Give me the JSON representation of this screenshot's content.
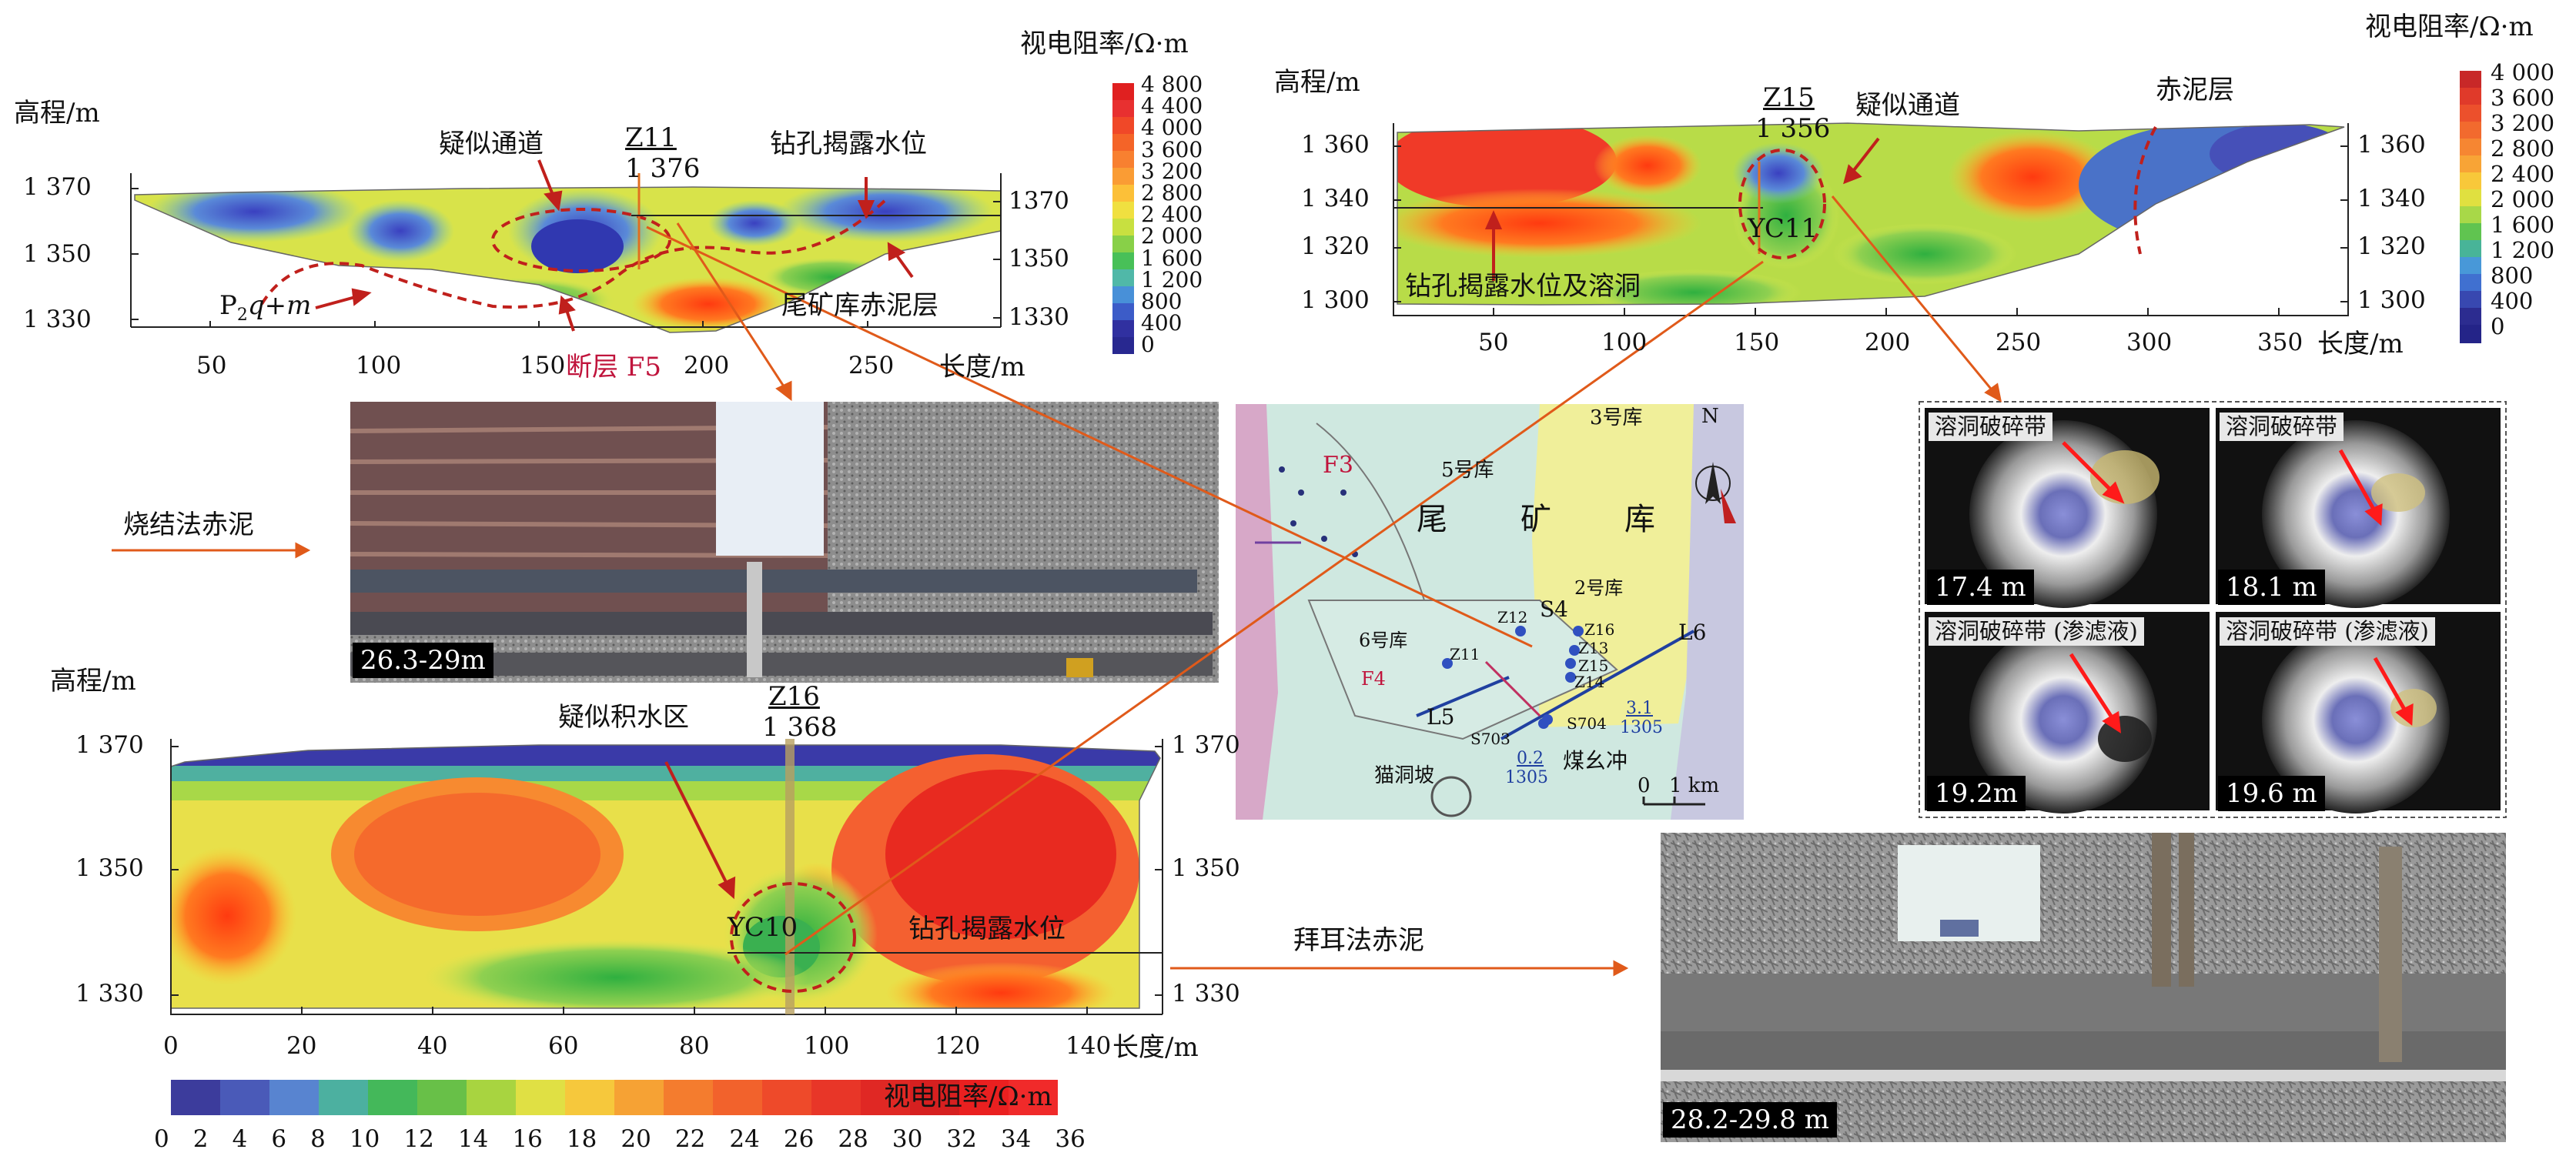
{
  "panel_top_left": {
    "y_label": "高程/m",
    "y_ticks": [
      "1 370",
      "1 350",
      "1 330"
    ],
    "y_ticks_right": [
      "1370",
      "1350",
      "1330"
    ],
    "x_ticks": [
      "50",
      "100",
      "150",
      "200",
      "250"
    ],
    "x_label": "长度/m",
    "borehole_name": "Z11",
    "borehole_elev": "1 376",
    "ann_channel": "疑似通道",
    "ann_water": "钻孔揭露水位",
    "ann_stratum_base": "P",
    "ann_stratum_sub": "2",
    "ann_stratum_rest": "q+m",
    "ann_fault": "断层 F5",
    "ann_redmud": "尾矿库赤泥层",
    "colorbar_title": "视电阻率/Ω·m",
    "colorbar_ticks": [
      "4 800",
      "4 400",
      "4 000",
      "3 600",
      "3 200",
      "2 800",
      "2 400",
      "2 000",
      "1 600",
      "1 200",
      "800",
      "400",
      "0"
    ]
  },
  "panel_top_right": {
    "y_label": "高程/m",
    "y_ticks": [
      "1 360",
      "1 340",
      "1 320",
      "1 300"
    ],
    "y_ticks_right": [
      "1 360",
      "1 340",
      "1 320",
      "1 300"
    ],
    "x_ticks": [
      "50",
      "100",
      "150",
      "200",
      "250",
      "300",
      "350"
    ],
    "x_label": "长度/m",
    "borehole_name": "Z15",
    "borehole_elev": "1 356",
    "ann_channel": "疑似通道",
    "ann_redmud": "赤泥层",
    "ann_yc": "YC11",
    "ann_water": "钻孔揭露水位及溶洞",
    "colorbar_title": "视电阻率/Ω·m",
    "colorbar_ticks": [
      "4 000",
      "3 600",
      "3 200",
      "2 800",
      "2 400",
      "2 000",
      "1 600",
      "1 200",
      "800",
      "400",
      "0"
    ]
  },
  "panel_bottom_left": {
    "y_label": "高程/m",
    "y_ticks": [
      "1 370",
      "1 350",
      "1 330"
    ],
    "y_ticks_right": [
      "1 370",
      "1 350",
      "1 330"
    ],
    "x_ticks": [
      "0",
      "20",
      "40",
      "60",
      "80",
      "100",
      "120",
      "140"
    ],
    "x_label": "长度/m",
    "borehole_name": "Z16",
    "borehole_elev": "1 368",
    "ann_water_zone": "疑似积水区",
    "ann_yc": "YC10",
    "ann_water": "钻孔揭露水位",
    "colorbar_title": "视电阻率/Ω·m",
    "colorbar_ticks": [
      "0",
      "2",
      "4",
      "6",
      "8",
      "10",
      "12",
      "14",
      "16",
      "18",
      "20",
      "22",
      "24",
      "26",
      "28",
      "30",
      "32",
      "34",
      "36"
    ]
  },
  "labels": {
    "sinter_redmud": "烧结法赤泥",
    "bayer_redmud": "拜耳法赤泥"
  },
  "photos": {
    "core_top": "26.3-29m",
    "core_bottom": "28.2-29.8 m",
    "borehole_cams": [
      {
        "tag": "溶洞破碎带",
        "depth": "17.4 m"
      },
      {
        "tag": "溶洞破碎带",
        "depth": "18.1 m"
      },
      {
        "tag": "溶洞破碎带 (渗滤液)",
        "depth": "19.2m"
      },
      {
        "tag": "溶洞破碎带 (渗滤液)",
        "depth": "19.6 m"
      }
    ]
  },
  "map": {
    "north": "N",
    "scale_0": "0",
    "scale_1": "1 km",
    "labels": [
      "5号库",
      "3号库",
      "尾",
      "矿",
      "库",
      "2号库",
      "6号库",
      "S4",
      "Z12",
      "Z16",
      "Z13",
      "Z15",
      "Z14",
      "Z11",
      "L5",
      "L6",
      "S703",
      "S704",
      "F3",
      "F4",
      "猫洞坡",
      "煤幺冲"
    ],
    "val_a_top": "0.2",
    "val_a_bot": "1305",
    "val_b_top": "3.1",
    "val_b_bot": "1305"
  }
}
